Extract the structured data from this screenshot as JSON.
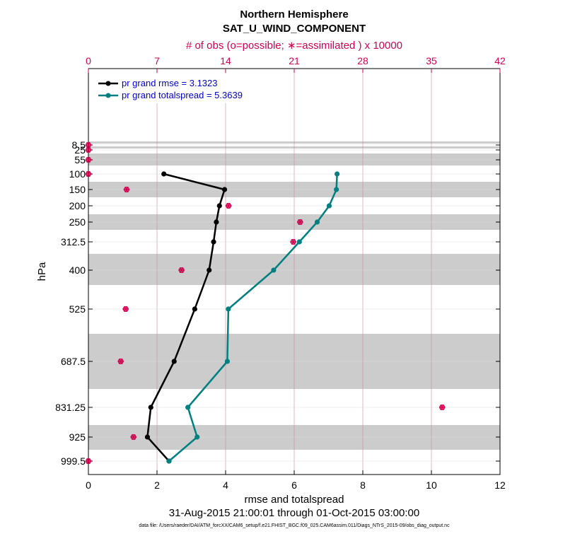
{
  "chart_data": {
    "type": "line",
    "title": "Northern Hemisphere",
    "subtitle": "SAT_U_WIND_COMPONENT",
    "xlabel": "rmse and totalspread",
    "ylabel": "hPa",
    "top_xlabel": "# of obs (o=possible; ∗=assimilated ) x 10000",
    "xlim": [
      0,
      12
    ],
    "top_xlim": [
      0,
      42
    ],
    "x_ticks": [
      "0",
      "2",
      "4",
      "6",
      "8",
      "10",
      "12"
    ],
    "top_x_ticks": [
      "0",
      "7",
      "14",
      "21",
      "28",
      "35",
      "42"
    ],
    "y_ticks": [
      "8.5",
      "25",
      "55",
      "100",
      "150",
      "200",
      "250",
      "312.5",
      "400",
      "525",
      "687.5",
      "831.25",
      "925",
      "999.5"
    ],
    "date_range": "31-Aug-2015 21:00:01 through 01-Oct-2015 03:00:00",
    "data_file": "data file: /Users/raeder/DAI/ATM_forcXX/CAM6_setup/f.e21.FHIST_BGC.f09_025.CAM6assim.011/Diags_NTrS_2015-09/obs_diag_output.nc",
    "series": [
      {
        "name": "pr grand rmse = 3.1323",
        "color": "#000000",
        "points": [
          {
            "level": "100",
            "x": 2.2
          },
          {
            "level": "150",
            "x": 3.97
          },
          {
            "level": "200",
            "x": 3.82
          },
          {
            "level": "250",
            "x": 3.73
          },
          {
            "level": "312.5",
            "x": 3.65
          },
          {
            "level": "400",
            "x": 3.52
          },
          {
            "level": "525",
            "x": 3.1
          },
          {
            "level": "687.5",
            "x": 2.5
          },
          {
            "level": "831.25",
            "x": 1.82
          },
          {
            "level": "925",
            "x": 1.72
          },
          {
            "level": "999.5",
            "x": 2.35
          }
        ]
      },
      {
        "name": "pr grand totalspread = 5.3639",
        "color": "#008080",
        "points": [
          {
            "level": "100",
            "x": 7.25
          },
          {
            "level": "150",
            "x": 7.23
          },
          {
            "level": "200",
            "x": 7.02
          },
          {
            "level": "250",
            "x": 6.67
          },
          {
            "level": "312.5",
            "x": 6.15
          },
          {
            "level": "400",
            "x": 5.4
          },
          {
            "level": "525",
            "x": 4.08
          },
          {
            "level": "687.5",
            "x": 4.05
          },
          {
            "level": "831.25",
            "x": 2.9
          },
          {
            "level": "925",
            "x": 3.17
          },
          {
            "level": "999.5",
            "x": 2.35
          }
        ]
      }
    ],
    "obs_counts": {
      "color": "#d5004f",
      "points": [
        {
          "level": "8.5",
          "x": 0
        },
        {
          "level": "25",
          "x": 0
        },
        {
          "level": "55",
          "x": 0
        },
        {
          "level": "100",
          "x": 0
        },
        {
          "level": "150",
          "x": 3.9
        },
        {
          "level": "200",
          "x": 14.3
        },
        {
          "level": "250",
          "x": 21.6
        },
        {
          "level": "312.5",
          "x": 20.9
        },
        {
          "level": "400",
          "x": 9.5
        },
        {
          "level": "525",
          "x": 3.8
        },
        {
          "level": "687.5",
          "x": 3.3
        },
        {
          "level": "831.25",
          "x": 36.1
        },
        {
          "level": "925",
          "x": 4.6
        },
        {
          "level": "999.5",
          "x": 0
        }
      ]
    }
  }
}
